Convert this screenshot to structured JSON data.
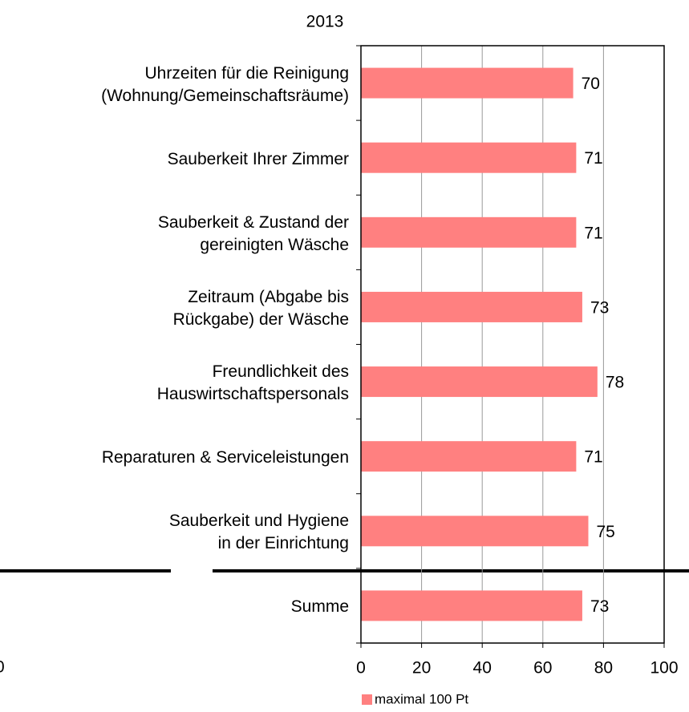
{
  "chart_data": {
    "type": "bar",
    "orientation": "horizontal",
    "title": "2013",
    "categories": [
      "Uhrzeiten für die Reinigung\n(Wohnung/Gemeinschaftsräume)",
      "Sauberkeit Ihrer Zimmer",
      "Sauberkeit & Zustand der\ngereinigten Wäsche",
      "Zeitraum (Abgabe bis\nRückgabe) der Wäsche",
      "Freundlichkeit des\nHauswirtschaftspersonals",
      "Reparaturen & Serviceleistungen",
      "Sauberkeit und Hygiene\nin der Einrichtung",
      "Summe"
    ],
    "series": [
      {
        "name": "maximal 100 Pt",
        "color": "#ff8080",
        "values": [
          70,
          71,
          71,
          73,
          78,
          71,
          75,
          73
        ]
      }
    ],
    "xlim": [
      0,
      100
    ],
    "xticks": [
      0,
      20,
      40,
      60,
      80,
      100
    ],
    "grid": true,
    "legend": "bottom",
    "annotations": [
      "0"
    ]
  }
}
